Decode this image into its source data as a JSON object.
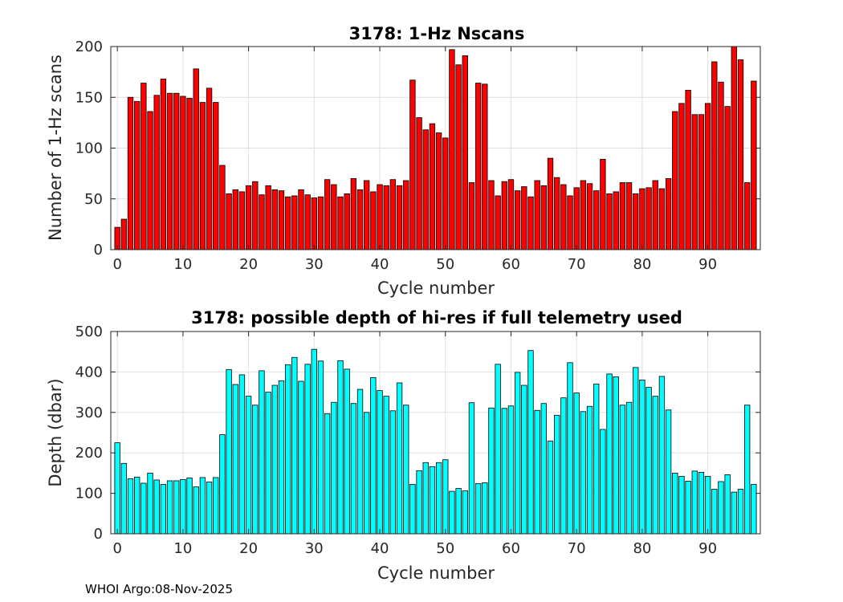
{
  "footer": "WHOI Argo:08-Nov-2025",
  "chart_data": [
    {
      "type": "bar",
      "title": "3178: 1-Hz Nscans",
      "xlabel": "Cycle number",
      "ylabel": "Number of 1-Hz scans",
      "xlim": [
        -1,
        98
      ],
      "ylim": [
        0,
        200
      ],
      "xticks": [
        0,
        10,
        20,
        30,
        40,
        50,
        60,
        70,
        80,
        90
      ],
      "yticks": [
        0,
        50,
        100,
        150,
        200
      ],
      "grid": true,
      "bar_color": "#ff0000",
      "x": [
        0,
        1,
        2,
        3,
        4,
        5,
        6,
        7,
        8,
        9,
        10,
        11,
        12,
        13,
        14,
        15,
        16,
        17,
        18,
        19,
        20,
        21,
        22,
        23,
        24,
        25,
        26,
        27,
        28,
        29,
        30,
        31,
        32,
        33,
        34,
        35,
        36,
        37,
        38,
        39,
        40,
        41,
        42,
        43,
        44,
        45,
        46,
        47,
        48,
        49,
        50,
        51,
        52,
        53,
        54,
        55,
        56,
        57,
        58,
        59,
        60,
        61,
        62,
        63,
        64,
        65,
        66,
        67,
        68,
        69,
        70,
        71,
        72,
        73,
        74,
        75,
        76,
        77,
        78,
        79,
        80,
        81,
        82,
        83,
        84,
        85,
        86,
        87,
        88,
        89,
        90,
        91,
        92,
        93,
        94,
        95,
        96,
        97
      ],
      "values": [
        22,
        30,
        150,
        146,
        164,
        136,
        152,
        168,
        154,
        154,
        151,
        149,
        178,
        145,
        159,
        145,
        83,
        55,
        59,
        57,
        63,
        67,
        54,
        63,
        59,
        58,
        52,
        53,
        59,
        54,
        51,
        52,
        69,
        64,
        52,
        55,
        70,
        59,
        68,
        57,
        64,
        63,
        69,
        63,
        68,
        167,
        130,
        118,
        124,
        115,
        110,
        197,
        182,
        191,
        66,
        164,
        163,
        68,
        53,
        67,
        69,
        58,
        62,
        52,
        68,
        63,
        90,
        71,
        64,
        53,
        61,
        68,
        65,
        58,
        89,
        55,
        57,
        66,
        66,
        55,
        60,
        61,
        68,
        60,
        70,
        136,
        144,
        157,
        133,
        133,
        144,
        185,
        165,
        141,
        200,
        187,
        66,
        166
      ]
    },
    {
      "type": "bar",
      "title": "3178: possible depth of hi-res if full telemetry used",
      "xlabel": "Cycle number",
      "ylabel": "Depth (dbar)",
      "xlim": [
        -1,
        98
      ],
      "ylim": [
        0,
        500
      ],
      "xticks": [
        0,
        10,
        20,
        30,
        40,
        50,
        60,
        70,
        80,
        90
      ],
      "yticks": [
        0,
        100,
        200,
        300,
        400,
        500
      ],
      "grid": true,
      "bar_color": "#00ffff",
      "x": [
        0,
        1,
        2,
        3,
        4,
        5,
        6,
        7,
        8,
        9,
        10,
        11,
        12,
        13,
        14,
        15,
        16,
        17,
        18,
        19,
        20,
        21,
        22,
        23,
        24,
        25,
        26,
        27,
        28,
        29,
        30,
        31,
        32,
        33,
        34,
        35,
        36,
        37,
        38,
        39,
        40,
        41,
        42,
        43,
        44,
        45,
        46,
        47,
        48,
        49,
        50,
        51,
        52,
        53,
        54,
        55,
        56,
        57,
        58,
        59,
        60,
        61,
        62,
        63,
        64,
        65,
        66,
        67,
        68,
        69,
        70,
        71,
        72,
        73,
        74,
        75,
        76,
        77,
        78,
        79,
        80,
        81,
        82,
        83,
        84,
        85,
        86,
        87,
        88,
        89,
        90,
        91,
        92,
        93,
        94,
        95,
        96,
        97
      ],
      "values": [
        225,
        174,
        136,
        140,
        125,
        150,
        133,
        122,
        131,
        131,
        134,
        138,
        116,
        139,
        128,
        139,
        245,
        406,
        369,
        393,
        340,
        318,
        403,
        350,
        367,
        378,
        418,
        436,
        377,
        419,
        456,
        427,
        297,
        325,
        428,
        407,
        322,
        357,
        300,
        386,
        354,
        340,
        304,
        373,
        318,
        122,
        156,
        176,
        166,
        176,
        183,
        105,
        112,
        106,
        324,
        124,
        126,
        311,
        419,
        310,
        316,
        399,
        367,
        453,
        305,
        322,
        229,
        293,
        336,
        423,
        348,
        302,
        315,
        370,
        258,
        395,
        388,
        318,
        325,
        411,
        380,
        362,
        340,
        389,
        306,
        150,
        142,
        130,
        155,
        152,
        142,
        110,
        129,
        146,
        103,
        110,
        318,
        122
      ]
    }
  ]
}
